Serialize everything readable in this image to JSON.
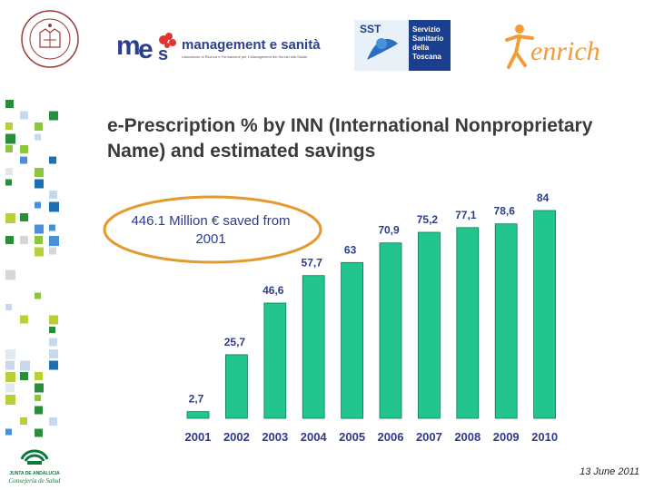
{
  "header": {
    "mes_logo_name": "management e sanità",
    "mes_logo_tagline": "Laboratorio di Ricerca e Formazione per il Management dei Servizi alla Salute",
    "sst_logo_lines": [
      "Servizio",
      "Sanitario",
      "della",
      "Toscana"
    ],
    "sst_logo_mark": "SST",
    "seal_logo_text": "SCUOLA SUPERIORE SANT'ANNA · PISA",
    "enrich_logo_text": "enrich",
    "junta_logo_lines": [
      "JUNTA DE ANDALUCIA",
      "Consejería de Salud"
    ]
  },
  "title": "e-Prescription % by INN (International Nonproprietary Name) and estimated savings",
  "callout": "446.1 Million € saved from 2001",
  "footer": {
    "date": "13 June 2011"
  },
  "colors": {
    "bar": "#22c58e",
    "bar_edge": "#0e7a56",
    "callout_border": "#e39a2e",
    "text_blue": "#2d3b8e"
  },
  "chart_data": {
    "type": "bar",
    "categories": [
      "2001",
      "2002",
      "2003",
      "2004",
      "2005",
      "2006",
      "2007",
      "2008",
      "2009",
      "2010"
    ],
    "values": [
      2.7,
      25.7,
      46.6,
      57.7,
      63,
      70.9,
      75.2,
      77.1,
      78.6,
      84
    ],
    "data_labels": [
      "2,7",
      "25,7",
      "46,6",
      "57,7",
      "63",
      "70,9",
      "75,2",
      "77,1",
      "78,6",
      "84"
    ],
    "title": "",
    "xlabel": "",
    "ylabel": "",
    "ylim": [
      0,
      84
    ],
    "grid": false,
    "legend": "none"
  }
}
